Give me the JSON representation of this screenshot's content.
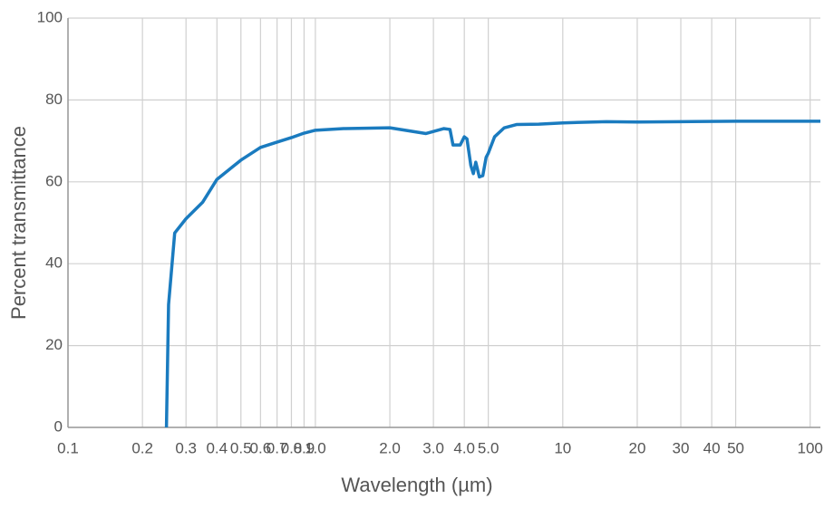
{
  "chart_data": {
    "type": "line",
    "x_label": "Wavelength (µm)",
    "y_label": "Percent transmittance",
    "x_scale": "log",
    "xlim": [
      0.1,
      110
    ],
    "ylim": [
      0,
      100
    ],
    "xticks": [
      0.1,
      0.2,
      0.3,
      0.4,
      0.5,
      0.6,
      0.7,
      0.8,
      0.9,
      {
        "value": 1,
        "label": "1.0"
      },
      {
        "value": 2,
        "label": "2.0"
      },
      {
        "value": 3,
        "label": "3.0"
      },
      {
        "value": 4,
        "label": "4.0"
      },
      {
        "value": 5,
        "label": "5.0"
      },
      10,
      20,
      30,
      40,
      50,
      100
    ],
    "yticks": [
      0,
      20,
      40,
      60,
      80,
      100
    ],
    "grid": true,
    "series": [
      {
        "color": "#1a7bbf",
        "x": [
          0.25,
          0.255,
          0.27,
          0.3,
          0.35,
          0.4,
          0.5,
          0.6,
          0.7,
          0.8,
          0.9,
          1.0,
          1.3,
          2.0,
          2.8,
          3.0,
          3.3,
          3.5,
          3.6,
          3.85,
          4.0,
          4.1,
          4.25,
          4.35,
          4.45,
          4.6,
          4.75,
          4.9,
          5.0,
          5.3,
          5.8,
          6.5,
          8,
          10,
          15,
          20,
          30,
          50,
          100,
          110
        ],
        "values": [
          0,
          30,
          47.5,
          51,
          55,
          60.6,
          65.3,
          68.4,
          69.7,
          70.8,
          71.9,
          72.6,
          73,
          73.2,
          71.8,
          72.3,
          73,
          72.8,
          69,
          69,
          71,
          70.5,
          64,
          62,
          64.8,
          61.2,
          61.5,
          66,
          67,
          71,
          73.2,
          74,
          74.1,
          74.4,
          74.7,
          74.6,
          74.7,
          74.8,
          74.8,
          74.8
        ]
      }
    ]
  }
}
